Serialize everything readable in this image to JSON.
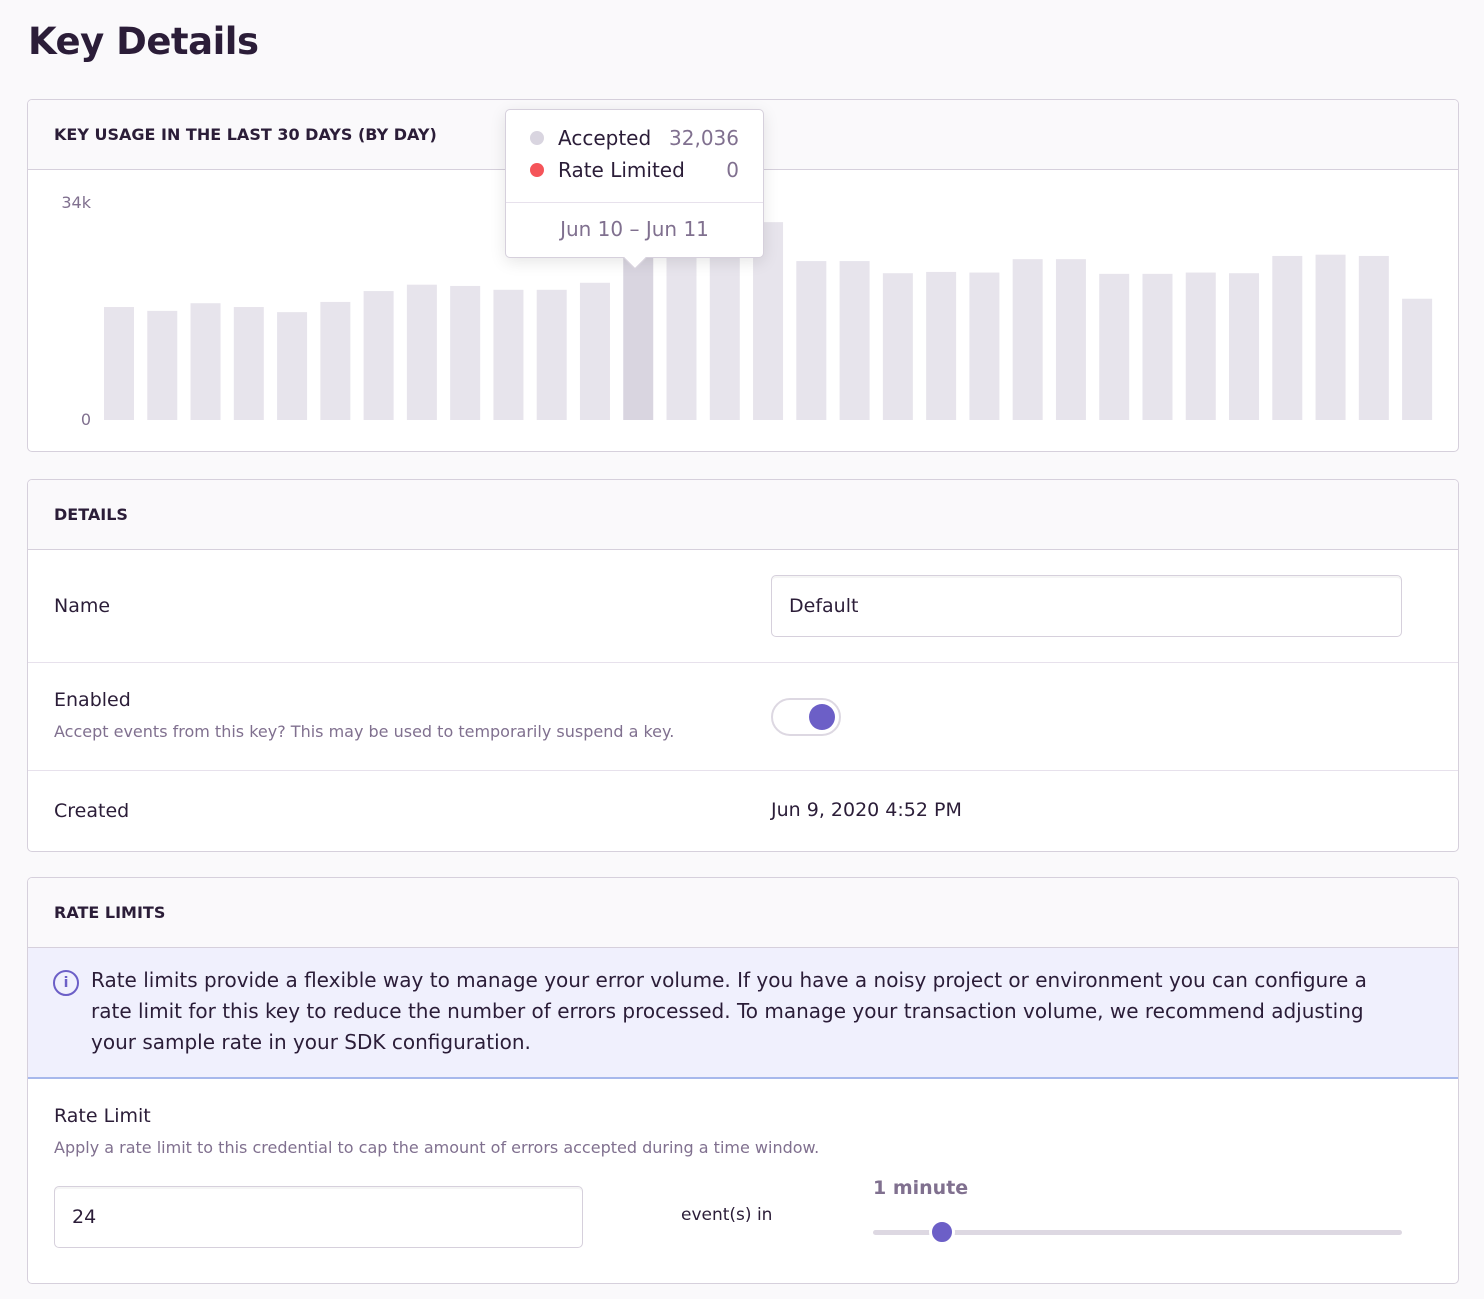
{
  "page": {
    "title": "Key Details"
  },
  "usage": {
    "header": "KEY USAGE IN THE LAST 30 DAYS (BY DAY)",
    "tooltip": {
      "accepted_label": "Accepted",
      "accepted_value": "32,036",
      "rate_limited_label": "Rate Limited",
      "rate_limited_value": "0",
      "date_range": "Jun 10 – Jun 11"
    }
  },
  "chart_data": {
    "type": "bar",
    "ylim": [
      0,
      34000
    ],
    "y_ticks": [
      "0",
      "34k"
    ],
    "highlighted_index": 12,
    "series": [
      {
        "name": "Accepted",
        "color": "#e7e4ec",
        "values": [
          17700,
          17100,
          18300,
          17700,
          16900,
          18500,
          20200,
          21200,
          21000,
          20400,
          20400,
          21500,
          32036,
          31500,
          31200,
          31000,
          24900,
          24900,
          23000,
          23200,
          23100,
          25200,
          25200,
          22900,
          22900,
          23100,
          23000,
          25700,
          25900,
          25700,
          19000
        ]
      },
      {
        "name": "Rate Limited",
        "color": "#f55459",
        "values": [
          0,
          0,
          0,
          0,
          0,
          0,
          0,
          0,
          0,
          0,
          0,
          0,
          0,
          0,
          0,
          0,
          0,
          0,
          0,
          0,
          0,
          0,
          0,
          0,
          0,
          0,
          0,
          0,
          0,
          0,
          0
        ]
      }
    ],
    "grid": false
  },
  "details": {
    "header": "DETAILS",
    "name_label": "Name",
    "name_value": "Default",
    "enabled_label": "Enabled",
    "enabled_help": "Accept events from this key? This may be used to temporarily suspend a key.",
    "enabled": true,
    "created_label": "Created",
    "created_value": "Jun 9, 2020 4:52 PM"
  },
  "rate_limits": {
    "header": "RATE LIMITS",
    "alert": "Rate limits provide a flexible way to manage your error volume. If you have a noisy project or environment you can configure a rate limit for this key to reduce the number of errors processed. To manage your transaction volume, we recommend adjusting your sample rate in your SDK configuration.",
    "label": "Rate Limit",
    "help": "Apply a rate limit to this credential to cap the amount of errors accepted during a time window.",
    "count": "24",
    "events_in": "event(s) in",
    "window_label": "1 minute",
    "window_slider_position": 0.13
  },
  "colors": {
    "accent": "#6c5fc7",
    "bar": "#e7e4ec",
    "bar_highlight": "#d9d5e0",
    "rate_limited": "#f55459"
  }
}
